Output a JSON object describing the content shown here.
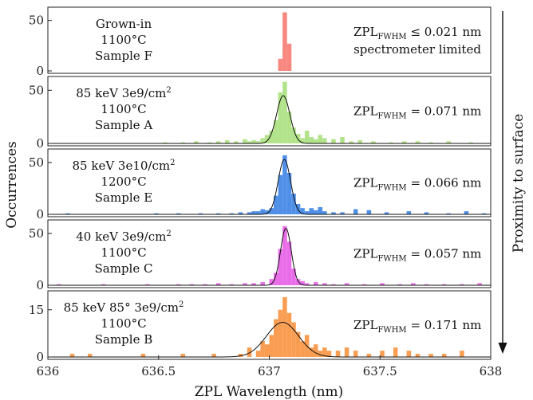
{
  "chart_data": {
    "type": "bar",
    "xlabel": "ZPL Wavelength (nm)",
    "ylabel": "Occurrences",
    "xlim": [
      636,
      638
    ],
    "xticks": [
      "636",
      "636.5",
      "637",
      "637.5",
      "638"
    ],
    "side_label": "Proximity to surface",
    "bin_width_nm": 0.02,
    "panels": [
      {
        "name": "Sample F",
        "color": "#f8877f",
        "sample_lines": [
          "Grown-in",
          "1100°C",
          "Sample F"
        ],
        "fwhm_prefix": "ZPL",
        "fwhm_sub": "FWHM",
        "fwhm_value": " ≤ 0.021 nm",
        "fwhm_note": "spectrometer limited",
        "ylim": [
          0,
          60
        ],
        "yticks": [
          "0",
          "50"
        ],
        "fit": null,
        "x": [
          637.05,
          637.07,
          637.09
        ],
        "values": [
          12,
          58,
          27
        ]
      },
      {
        "name": "Sample A",
        "color": "#b2e38b",
        "sample_lines": [
          "85 keV 3e9/cm2",
          "1100°C",
          "Sample A"
        ],
        "fwhm_prefix": "ZPL",
        "fwhm_sub": "FWHM",
        "fwhm_value": " = 0.071 nm",
        "fwhm_note": "",
        "ylim": [
          0,
          60
        ],
        "yticks": [
          "0",
          "50"
        ],
        "fit": {
          "center": 637.063,
          "fwhm": 0.071,
          "amplitude": 45
        },
        "x": [
          636.53,
          636.61,
          636.67,
          636.73,
          636.77,
          636.81,
          636.85,
          636.89,
          636.91,
          636.93,
          636.95,
          636.97,
          636.99,
          637.01,
          637.03,
          637.05,
          637.07,
          637.09,
          637.11,
          637.13,
          637.15,
          637.17,
          637.19,
          637.21,
          637.23,
          637.25,
          637.29,
          637.33,
          637.37,
          637.41,
          637.47,
          637.55,
          637.61,
          637.67,
          637.73,
          637.81,
          637.91
        ],
        "values": [
          1,
          1,
          2,
          1,
          2,
          3,
          2,
          4,
          2,
          3,
          2,
          5,
          8,
          12,
          22,
          48,
          58,
          30,
          15,
          9,
          5,
          12,
          6,
          4,
          8,
          5,
          4,
          6,
          2,
          3,
          2,
          1,
          2,
          2,
          1,
          2,
          1
        ]
      },
      {
        "name": "Sample E",
        "color": "#4f8fe8",
        "sample_lines": [
          "85 keV 3e10/cm2",
          "1200°C",
          "Sample E"
        ],
        "fwhm_prefix": "ZPL",
        "fwhm_sub": "FWHM",
        "fwhm_value": " = 0.066 nm",
        "fwhm_note": "",
        "ylim": [
          0,
          60
        ],
        "yticks": [
          "0",
          "50"
        ],
        "fit": {
          "center": 637.068,
          "fwhm": 0.066,
          "amplitude": 53
        },
        "x": [
          636.09,
          636.49,
          636.59,
          636.69,
          636.77,
          636.83,
          636.87,
          636.91,
          636.93,
          636.95,
          636.97,
          636.99,
          637.01,
          637.03,
          637.05,
          637.07,
          637.09,
          637.11,
          637.13,
          637.15,
          637.17,
          637.19,
          637.21,
          637.23,
          637.25,
          637.29,
          637.33,
          637.39,
          637.45,
          637.53,
          637.63,
          637.71,
          637.81,
          637.89,
          637.97
        ],
        "values": [
          1,
          1,
          1,
          1,
          1,
          1,
          2,
          2,
          3,
          3,
          5,
          4,
          6,
          18,
          38,
          57,
          40,
          20,
          10,
          6,
          3,
          6,
          4,
          7,
          3,
          2,
          2,
          5,
          4,
          2,
          3,
          2,
          1,
          3,
          1
        ]
      },
      {
        "name": "Sample C",
        "color": "#e96de8",
        "sample_lines": [
          "40 keV 3e9/cm2",
          "1100°C",
          "Sample C"
        ],
        "fwhm_prefix": "ZPL",
        "fwhm_sub": "FWHM",
        "fwhm_value": " = 0.057 nm",
        "fwhm_note": "",
        "ylim": [
          0,
          60
        ],
        "yticks": [
          "0",
          "50"
        ],
        "fit": {
          "center": 637.075,
          "fwhm": 0.057,
          "amplitude": 55
        },
        "x": [
          636.05,
          636.25,
          636.45,
          636.59,
          636.65,
          636.71,
          636.77,
          636.83,
          636.89,
          636.93,
          636.97,
          637.01,
          637.03,
          637.05,
          637.07,
          637.09,
          637.11,
          637.13,
          637.15,
          637.17,
          637.21,
          637.25,
          637.29,
          637.35,
          637.43,
          637.51,
          637.59,
          637.65,
          637.71,
          637.79,
          637.87,
          637.95
        ],
        "values": [
          1,
          1,
          1,
          1,
          1,
          1,
          2,
          1,
          2,
          2,
          3,
          6,
          12,
          35,
          57,
          42,
          16,
          6,
          4,
          2,
          3,
          2,
          1,
          2,
          1,
          2,
          1,
          2,
          1,
          1,
          1,
          2
        ]
      },
      {
        "name": "Sample B",
        "color": "#f99d52",
        "sample_lines": [
          "85 keV 85° 3e9/cm2",
          "1100°C",
          "Sample B"
        ],
        "fwhm_prefix": "ZPL",
        "fwhm_sub": "FWHM",
        "fwhm_value": " = 0.171 nm",
        "fwhm_note": "",
        "ylim": [
          0,
          20
        ],
        "yticks": [
          "0",
          "15"
        ],
        "fit": {
          "center": 637.06,
          "fwhm": 0.171,
          "amplitude": 11
        },
        "x": [
          636.11,
          636.19,
          636.43,
          636.61,
          636.75,
          636.87,
          636.91,
          636.95,
          636.97,
          636.99,
          637.01,
          637.03,
          637.05,
          637.07,
          637.09,
          637.11,
          637.13,
          637.15,
          637.17,
          637.19,
          637.21,
          637.23,
          637.25,
          637.27,
          637.31,
          637.35,
          637.39,
          637.45,
          637.51,
          637.57,
          637.63,
          637.67,
          637.73,
          637.79,
          637.87
        ],
        "values": [
          1,
          1,
          1,
          1,
          1,
          1,
          3,
          2,
          5,
          4,
          7,
          12,
          15,
          19,
          14,
          11,
          8,
          5,
          7,
          3,
          4,
          2,
          3,
          2,
          2,
          3,
          2,
          1,
          2,
          3,
          2,
          1,
          1,
          1,
          2
        ]
      }
    ]
  }
}
